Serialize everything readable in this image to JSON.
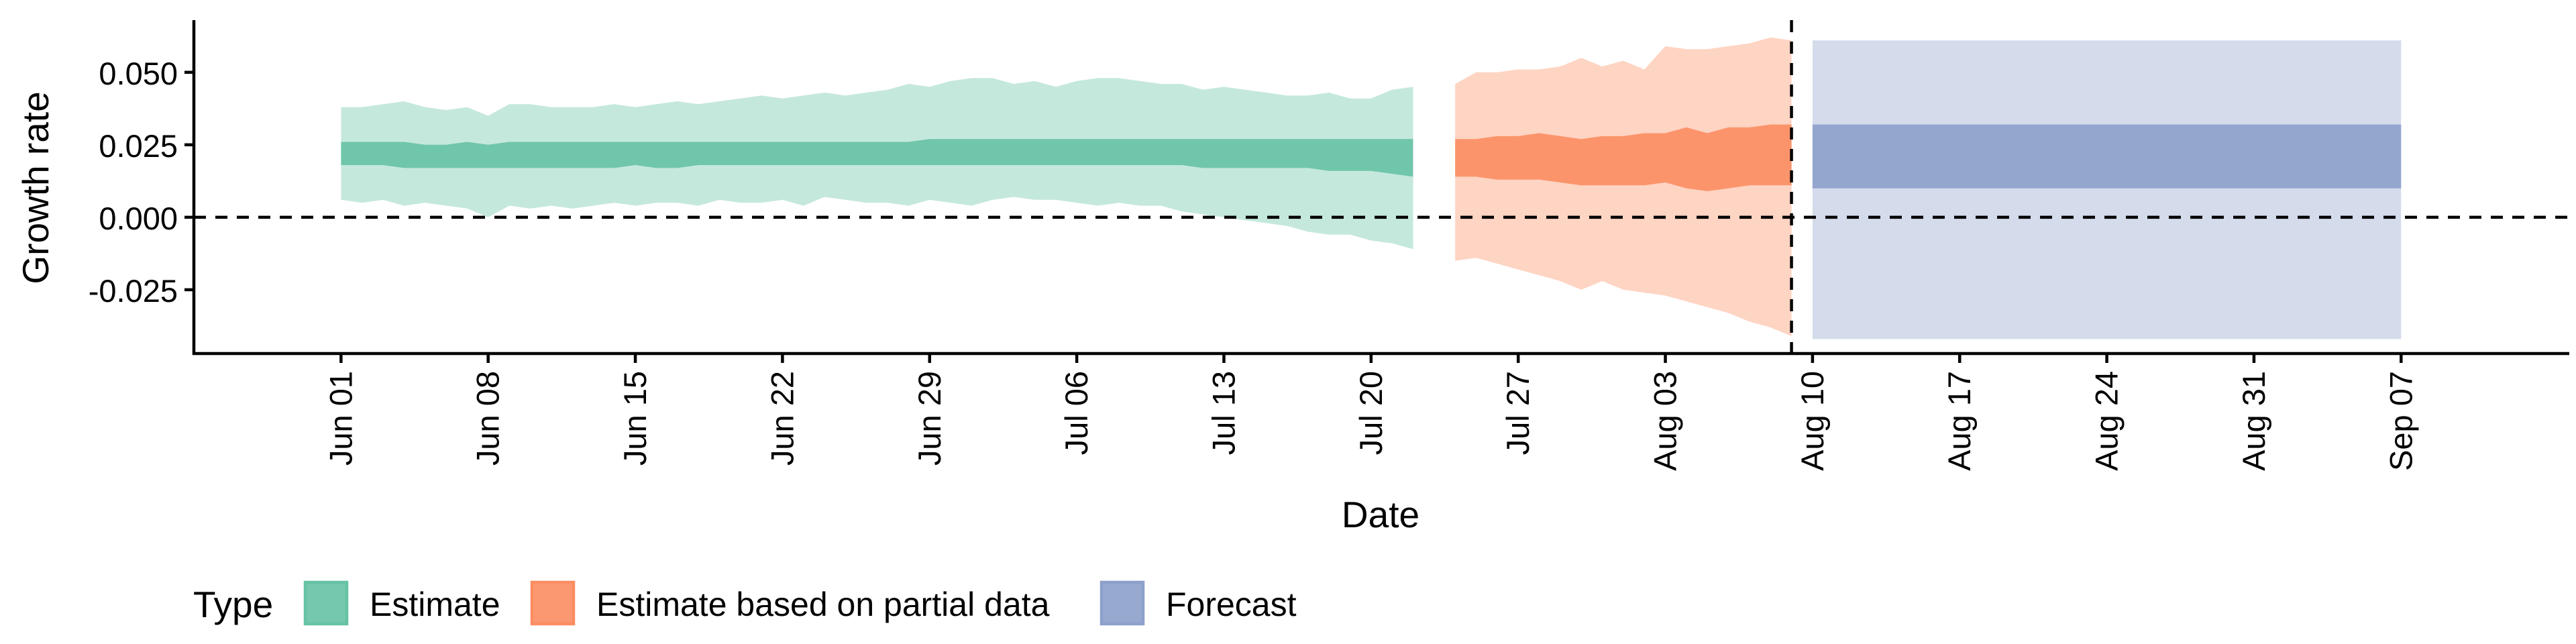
{
  "chart_data": {
    "type": "area",
    "xlabel": "Date",
    "ylabel": "Growth rate",
    "ylim": [
      -0.047,
      0.068
    ],
    "xlim": [
      "2021-05-25",
      "2021-09-15"
    ],
    "y_ticks": [
      {
        "value": -0.025,
        "label": "-0.025"
      },
      {
        "value": 0.0,
        "label": "0.000"
      },
      {
        "value": 0.025,
        "label": "0.025"
      },
      {
        "value": 0.05,
        "label": "0.050"
      }
    ],
    "x_ticks": [
      {
        "date": "2021-06-01",
        "label": "Jun 01"
      },
      {
        "date": "2021-06-08",
        "label": "Jun 08"
      },
      {
        "date": "2021-06-15",
        "label": "Jun 15"
      },
      {
        "date": "2021-06-22",
        "label": "Jun 22"
      },
      {
        "date": "2021-06-29",
        "label": "Jun 29"
      },
      {
        "date": "2021-07-06",
        "label": "Jul 06"
      },
      {
        "date": "2021-07-13",
        "label": "Jul 13"
      },
      {
        "date": "2021-07-20",
        "label": "Jul 20"
      },
      {
        "date": "2021-07-27",
        "label": "Jul 27"
      },
      {
        "date": "2021-08-03",
        "label": "Aug 03"
      },
      {
        "date": "2021-08-10",
        "label": "Aug 10"
      },
      {
        "date": "2021-08-17",
        "label": "Aug 17"
      },
      {
        "date": "2021-08-24",
        "label": "Aug 24"
      },
      {
        "date": "2021-08-31",
        "label": "Aug 31"
      },
      {
        "date": "2021-09-07",
        "label": "Sep 07"
      }
    ],
    "reference_lines": {
      "horizontal_y": 0.0,
      "vertical_date": "2021-08-09"
    },
    "legend": {
      "title": "Type",
      "position": "bottom",
      "entries": [
        "Estimate",
        "Estimate based on partial data",
        "Forecast"
      ]
    },
    "colors": {
      "estimate": "#66c2a5",
      "partial": "#fc8d62",
      "forecast": "#8da0cb",
      "axis": "#000000"
    },
    "series": [
      {
        "name": "Estimate",
        "color_key": "estimate",
        "dates": [
          "2021-06-01",
          "2021-06-02",
          "2021-06-03",
          "2021-06-04",
          "2021-06-05",
          "2021-06-06",
          "2021-06-07",
          "2021-06-08",
          "2021-06-09",
          "2021-06-10",
          "2021-06-11",
          "2021-06-12",
          "2021-06-13",
          "2021-06-14",
          "2021-06-15",
          "2021-06-16",
          "2021-06-17",
          "2021-06-18",
          "2021-06-19",
          "2021-06-20",
          "2021-06-21",
          "2021-06-22",
          "2021-06-23",
          "2021-06-24",
          "2021-06-25",
          "2021-06-26",
          "2021-06-27",
          "2021-06-28",
          "2021-06-29",
          "2021-06-30",
          "2021-07-01",
          "2021-07-02",
          "2021-07-03",
          "2021-07-04",
          "2021-07-05",
          "2021-07-06",
          "2021-07-07",
          "2021-07-08",
          "2021-07-09",
          "2021-07-10",
          "2021-07-11",
          "2021-07-12",
          "2021-07-13",
          "2021-07-14",
          "2021-07-15",
          "2021-07-16",
          "2021-07-17",
          "2021-07-18",
          "2021-07-19",
          "2021-07-20",
          "2021-07-21",
          "2021-07-22"
        ],
        "outer_upper": [
          0.038,
          0.038,
          0.039,
          0.04,
          0.038,
          0.037,
          0.038,
          0.035,
          0.039,
          0.039,
          0.038,
          0.038,
          0.038,
          0.039,
          0.038,
          0.039,
          0.04,
          0.039,
          0.04,
          0.041,
          0.042,
          0.041,
          0.042,
          0.043,
          0.042,
          0.043,
          0.044,
          0.046,
          0.045,
          0.047,
          0.048,
          0.048,
          0.046,
          0.047,
          0.045,
          0.047,
          0.048,
          0.048,
          0.047,
          0.046,
          0.046,
          0.044,
          0.045,
          0.044,
          0.043,
          0.042,
          0.042,
          0.043,
          0.041,
          0.041,
          0.044,
          0.045
        ],
        "outer_lower": [
          0.006,
          0.005,
          0.006,
          0.004,
          0.005,
          0.004,
          0.003,
          0.0,
          0.004,
          0.003,
          0.004,
          0.003,
          0.004,
          0.005,
          0.004,
          0.005,
          0.005,
          0.004,
          0.006,
          0.005,
          0.005,
          0.006,
          0.004,
          0.007,
          0.006,
          0.005,
          0.005,
          0.004,
          0.006,
          0.005,
          0.004,
          0.006,
          0.007,
          0.006,
          0.006,
          0.005,
          0.004,
          0.005,
          0.004,
          0.004,
          0.002,
          0.001,
          0.0,
          -0.001,
          -0.002,
          -0.003,
          -0.005,
          -0.006,
          -0.006,
          -0.008,
          -0.009,
          -0.011
        ],
        "inner_upper": [
          0.026,
          0.026,
          0.026,
          0.026,
          0.025,
          0.025,
          0.026,
          0.025,
          0.026,
          0.026,
          0.026,
          0.026,
          0.026,
          0.026,
          0.026,
          0.026,
          0.026,
          0.026,
          0.026,
          0.026,
          0.026,
          0.026,
          0.026,
          0.026,
          0.026,
          0.026,
          0.026,
          0.026,
          0.027,
          0.027,
          0.027,
          0.027,
          0.027,
          0.027,
          0.027,
          0.027,
          0.027,
          0.027,
          0.027,
          0.027,
          0.027,
          0.027,
          0.027,
          0.027,
          0.027,
          0.027,
          0.027,
          0.027,
          0.027,
          0.027,
          0.027,
          0.027
        ],
        "inner_lower": [
          0.018,
          0.018,
          0.018,
          0.017,
          0.017,
          0.017,
          0.017,
          0.017,
          0.017,
          0.017,
          0.017,
          0.017,
          0.017,
          0.017,
          0.018,
          0.017,
          0.017,
          0.018,
          0.018,
          0.018,
          0.018,
          0.018,
          0.018,
          0.018,
          0.018,
          0.018,
          0.018,
          0.018,
          0.018,
          0.018,
          0.018,
          0.018,
          0.018,
          0.018,
          0.018,
          0.018,
          0.018,
          0.018,
          0.018,
          0.018,
          0.018,
          0.017,
          0.017,
          0.017,
          0.017,
          0.017,
          0.017,
          0.016,
          0.016,
          0.016,
          0.015,
          0.014
        ]
      },
      {
        "name": "Estimate based on partial data",
        "color_key": "partial",
        "dates": [
          "2021-07-24",
          "2021-07-25",
          "2021-07-26",
          "2021-07-27",
          "2021-07-28",
          "2021-07-29",
          "2021-07-30",
          "2021-07-31",
          "2021-08-01",
          "2021-08-02",
          "2021-08-03",
          "2021-08-04",
          "2021-08-05",
          "2021-08-06",
          "2021-08-07",
          "2021-08-08",
          "2021-08-09"
        ],
        "outer_upper": [
          0.046,
          0.05,
          0.05,
          0.051,
          0.051,
          0.052,
          0.055,
          0.052,
          0.054,
          0.051,
          0.059,
          0.058,
          0.058,
          0.059,
          0.06,
          0.062,
          0.061
        ],
        "outer_lower": [
          -0.015,
          -0.014,
          -0.016,
          -0.018,
          -0.02,
          -0.022,
          -0.025,
          -0.022,
          -0.025,
          -0.026,
          -0.027,
          -0.029,
          -0.031,
          -0.033,
          -0.036,
          -0.038,
          -0.041
        ],
        "inner_upper": [
          0.027,
          0.027,
          0.028,
          0.028,
          0.029,
          0.028,
          0.027,
          0.028,
          0.028,
          0.029,
          0.029,
          0.031,
          0.029,
          0.031,
          0.031,
          0.032,
          0.032
        ],
        "inner_lower": [
          0.014,
          0.014,
          0.013,
          0.013,
          0.013,
          0.012,
          0.011,
          0.011,
          0.011,
          0.011,
          0.012,
          0.01,
          0.009,
          0.01,
          0.011,
          0.011,
          0.011
        ]
      },
      {
        "name": "Forecast",
        "color_key": "forecast",
        "dates": [
          "2021-08-10",
          "2021-09-07"
        ],
        "outer_upper": [
          0.061,
          0.061
        ],
        "outer_lower": [
          -0.042,
          -0.042
        ],
        "inner_upper": [
          0.032,
          0.032
        ],
        "inner_lower": [
          0.01,
          0.01
        ]
      }
    ]
  }
}
